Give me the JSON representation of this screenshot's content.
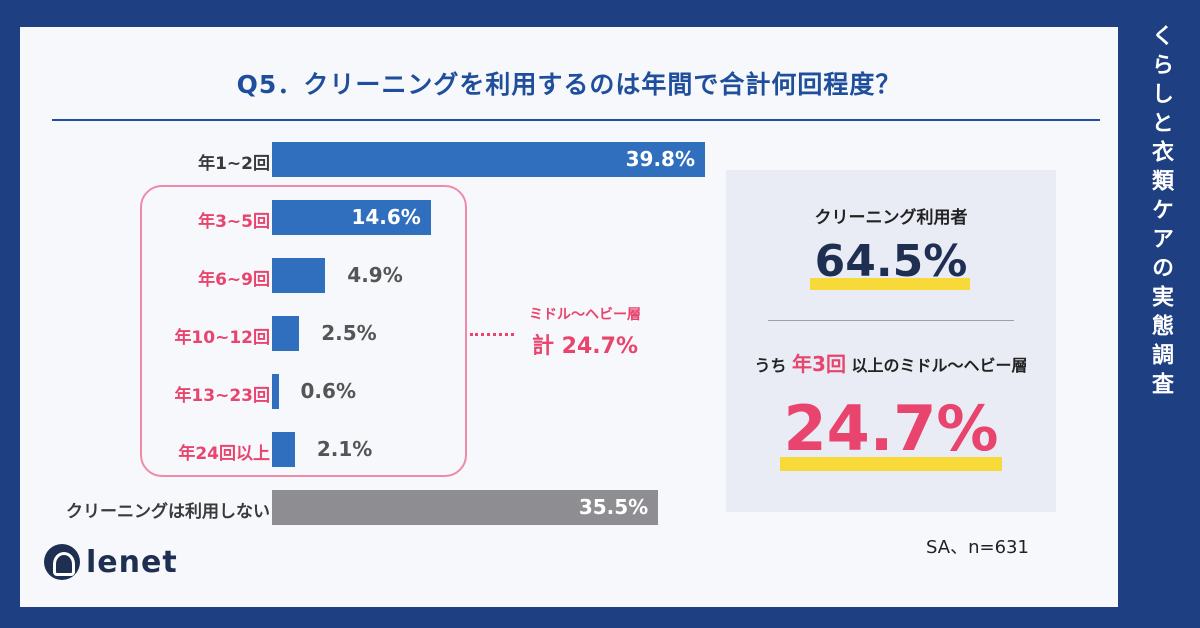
{
  "side_title": "くらしと衣類ケアの実態調査",
  "title": "Q5．クリーニングを利用するのは年間で合計何回程度？",
  "chart_data": {
    "type": "bar",
    "orientation": "horizontal",
    "categories": [
      "年1~2回",
      "年3~5回",
      "年6~9回",
      "年10~12回",
      "年13~23回",
      "年24回以上",
      "クリーニングは利用しない"
    ],
    "values": [
      39.8,
      14.6,
      4.9,
      2.5,
      0.6,
      2.1,
      35.5
    ],
    "value_labels": [
      "39.8%",
      "14.6%",
      "4.9%",
      "2.5%",
      "0.6%",
      "2.1%",
      "35.5%"
    ],
    "bar_colors": [
      "#2f6fbd",
      "#2f6fbd",
      "#2f6fbd",
      "#2f6fbd",
      "#2f6fbd",
      "#2f6fbd",
      "#8e8e92"
    ],
    "highlight_categories": [
      1,
      2,
      3,
      4,
      5
    ],
    "xlim": [
      0,
      40
    ],
    "grid": false
  },
  "group_callout": {
    "label": "ミドル〜ヘビー層",
    "value": "計 24.7%"
  },
  "panel": {
    "label1": "クリーニング利用者",
    "value1": "64.5%",
    "label2_prefix": "うち",
    "label2_emphasis": "年3回",
    "label2_suffix": "以上のミドル〜ヘビー層",
    "value2": "24.7%"
  },
  "note": "SA、n=631",
  "logo_text": "lenet",
  "colors": {
    "background": "#1e3f82",
    "accent_blue": "#1e4e9c",
    "accent_pink": "#e8446e",
    "highlight_yellow": "#f7d93a"
  }
}
